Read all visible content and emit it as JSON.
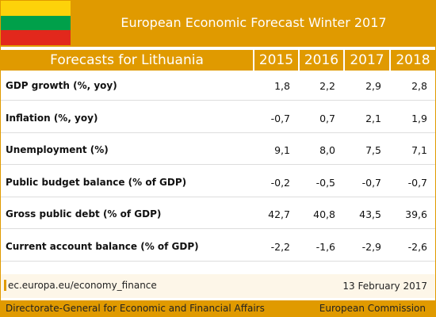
{
  "header": {
    "title": "European Economic Forecast Winter 2017"
  },
  "table": {
    "caption": "Forecasts for Lithuania",
    "columns": [
      "2015",
      "2016",
      "2017",
      "2018"
    ],
    "rows": [
      {
        "label": "GDP growth (%, yoy)",
        "values": [
          "1,8",
          "2,2",
          "2,9",
          "2,8"
        ]
      },
      {
        "label": "Inflation (%, yoy)",
        "values": [
          "-0,7",
          "0,7",
          "2,1",
          "1,9"
        ]
      },
      {
        "label": "Unemployment (%)",
        "values": [
          "9,1",
          "8,0",
          "7,5",
          "7,1"
        ]
      },
      {
        "label": "Public budget balance (% of GDP)",
        "values": [
          "-0,2",
          "-0,5",
          "-0,7",
          "-0,7"
        ]
      },
      {
        "label": "Gross public debt (% of GDP)",
        "values": [
          "42,7",
          "40,8",
          "43,5",
          "39,6"
        ]
      },
      {
        "label": "Current account balance (% of GDP)",
        "values": [
          "-2,2",
          "-1,6",
          "-2,9",
          "-2,6"
        ]
      }
    ]
  },
  "source": {
    "url_prefix": "ec.europa.eu/",
    "url_path": "economy_finance",
    "date": "13 February 2017"
  },
  "footer": {
    "left": "Directorate-General for Economic and Financial Affairs",
    "right": "European Commission"
  }
}
